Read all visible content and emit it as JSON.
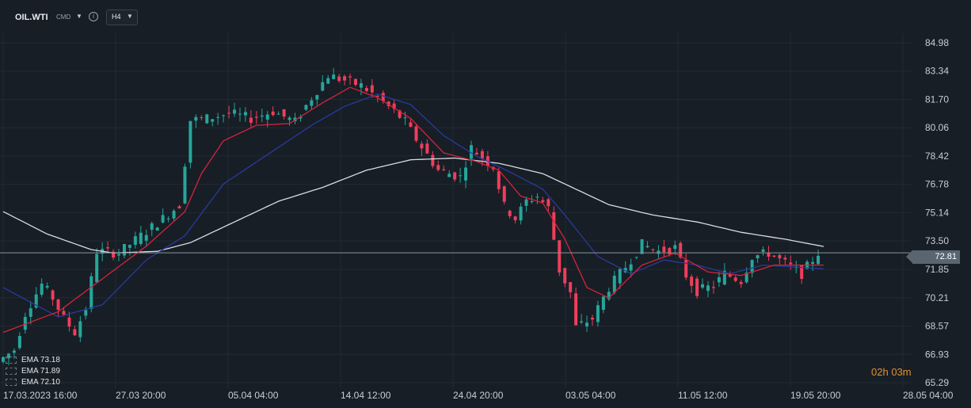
{
  "header": {
    "symbol": "OIL.WTI",
    "asset_type": "CMD",
    "timeframe": "H4",
    "info_icon": "info-icon",
    "caret_icon": "chevron-down-icon"
  },
  "colors": {
    "background": "#171e26",
    "bull_candle": "#26a69a",
    "bear_candle": "#ef3e5a",
    "ema_fast": "#d4243a",
    "ema_mid": "#2a3a9a",
    "ema_slow": "#d8dde3",
    "current_price_line": "#8a939c",
    "countdown": "#e0902a"
  },
  "indicators": [
    {
      "name": "EMA",
      "value": "73.18"
    },
    {
      "name": "EMA",
      "value": "71.89"
    },
    {
      "name": "EMA",
      "value": "72.10"
    }
  ],
  "countdown": {
    "hours": "02",
    "h": "h",
    "minutes": "03",
    "m": "m"
  },
  "current_price": "72.81",
  "chart_data": {
    "type": "candlestick",
    "instrument": "OIL.WTI",
    "timeframe": "H4",
    "y_axis": {
      "ticks": [
        "84.98",
        "83.34",
        "81.70",
        "80.06",
        "78.42",
        "76.78",
        "75.14",
        "73.50",
        "71.85",
        "70.21",
        "68.57",
        "66.93",
        "65.29"
      ],
      "range": [
        65.29,
        84.98
      ],
      "position": "right"
    },
    "x_axis": {
      "ticks": [
        "17.03.2023  16:00",
        "27.03  20:00",
        "05.04  04:00",
        "14.04  12:00",
        "24.04  20:00",
        "03.05  04:00",
        "11.05  12:00",
        "19.05  20:00",
        "28.05  04:00"
      ]
    },
    "current_price": 72.81,
    "price_path": [
      [
        0,
        66.5
      ],
      [
        3,
        67.2
      ],
      [
        5,
        69.3
      ],
      [
        8,
        71.0
      ],
      [
        10,
        70.2
      ],
      [
        12,
        69.0
      ],
      [
        14,
        68.2
      ],
      [
        16,
        69.6
      ],
      [
        18,
        72.9
      ],
      [
        22,
        72.8
      ],
      [
        26,
        73.8
      ],
      [
        30,
        74.8
      ],
      [
        33,
        75.6
      ],
      [
        35,
        80.5
      ],
      [
        38,
        80.6
      ],
      [
        42,
        80.9
      ],
      [
        46,
        80.6
      ],
      [
        50,
        81.0
      ],
      [
        54,
        80.4
      ],
      [
        57,
        81.8
      ],
      [
        60,
        83.1
      ],
      [
        63,
        82.8
      ],
      [
        66,
        82.5
      ],
      [
        69,
        81.8
      ],
      [
        72,
        81.0
      ],
      [
        74,
        80.4
      ],
      [
        76,
        79.4
      ],
      [
        80,
        77.6
      ],
      [
        84,
        77.2
      ],
      [
        86,
        78.9
      ],
      [
        90,
        77.8
      ],
      [
        92,
        75.5
      ],
      [
        94,
        74.8
      ],
      [
        96,
        75.8
      ],
      [
        98,
        76.1
      ],
      [
        100,
        75.4
      ],
      [
        102,
        71.8
      ],
      [
        104,
        70.5
      ],
      [
        105,
        68.5
      ],
      [
        108,
        69.0
      ],
      [
        111,
        70.8
      ],
      [
        114,
        72.0
      ],
      [
        117,
        73.3
      ],
      [
        120,
        72.9
      ],
      [
        123,
        73.1
      ],
      [
        125,
        71.5
      ],
      [
        127,
        70.6
      ],
      [
        130,
        70.9
      ],
      [
        132,
        71.6
      ],
      [
        135,
        71.2
      ],
      [
        137,
        72.6
      ],
      [
        140,
        72.8
      ],
      [
        143,
        72.2
      ],
      [
        146,
        71.6
      ],
      [
        149,
        72.81
      ]
    ],
    "ema_fast_path": [
      [
        0,
        68.2
      ],
      [
        10,
        69.4
      ],
      [
        18,
        71.3
      ],
      [
        26,
        73.2
      ],
      [
        33,
        75.2
      ],
      [
        36,
        77.4
      ],
      [
        40,
        79.3
      ],
      [
        46,
        80.2
      ],
      [
        52,
        80.3
      ],
      [
        58,
        81.5
      ],
      [
        63,
        82.4
      ],
      [
        68,
        81.8
      ],
      [
        74,
        80.6
      ],
      [
        80,
        78.6
      ],
      [
        86,
        78.1
      ],
      [
        90,
        77.6
      ],
      [
        94,
        76.1
      ],
      [
        98,
        75.7
      ],
      [
        102,
        73.6
      ],
      [
        106,
        70.8
      ],
      [
        110,
        70.2
      ],
      [
        116,
        72.1
      ],
      [
        122,
        72.8
      ],
      [
        128,
        71.7
      ],
      [
        134,
        71.5
      ],
      [
        140,
        72.1
      ],
      [
        149,
        72.1
      ]
    ],
    "ema_mid_path": [
      [
        0,
        70.8
      ],
      [
        10,
        69.1
      ],
      [
        18,
        69.8
      ],
      [
        26,
        72.4
      ],
      [
        33,
        73.8
      ],
      [
        40,
        76.8
      ],
      [
        48,
        78.5
      ],
      [
        56,
        80.2
      ],
      [
        62,
        81.3
      ],
      [
        68,
        82.0
      ],
      [
        74,
        81.4
      ],
      [
        80,
        79.6
      ],
      [
        86,
        78.4
      ],
      [
        92,
        77.5
      ],
      [
        98,
        76.5
      ],
      [
        102,
        75.0
      ],
      [
        108,
        72.6
      ],
      [
        114,
        71.6
      ],
      [
        120,
        72.4
      ],
      [
        126,
        72.1
      ],
      [
        132,
        71.6
      ],
      [
        138,
        72.1
      ],
      [
        149,
        71.89
      ]
    ],
    "ema_slow_path": [
      [
        0,
        75.2
      ],
      [
        8,
        73.9
      ],
      [
        16,
        73.0
      ],
      [
        20,
        72.8
      ],
      [
        28,
        72.9
      ],
      [
        34,
        73.4
      ],
      [
        42,
        74.6
      ],
      [
        50,
        75.8
      ],
      [
        58,
        76.6
      ],
      [
        66,
        77.6
      ],
      [
        74,
        78.2
      ],
      [
        82,
        78.3
      ],
      [
        90,
        78.0
      ],
      [
        98,
        77.4
      ],
      [
        104,
        76.5
      ],
      [
        110,
        75.6
      ],
      [
        118,
        75.0
      ],
      [
        126,
        74.6
      ],
      [
        134,
        74.0
      ],
      [
        142,
        73.6
      ],
      [
        149,
        73.18
      ]
    ],
    "legend": {
      "position": "bottom-left"
    },
    "grid": true
  }
}
